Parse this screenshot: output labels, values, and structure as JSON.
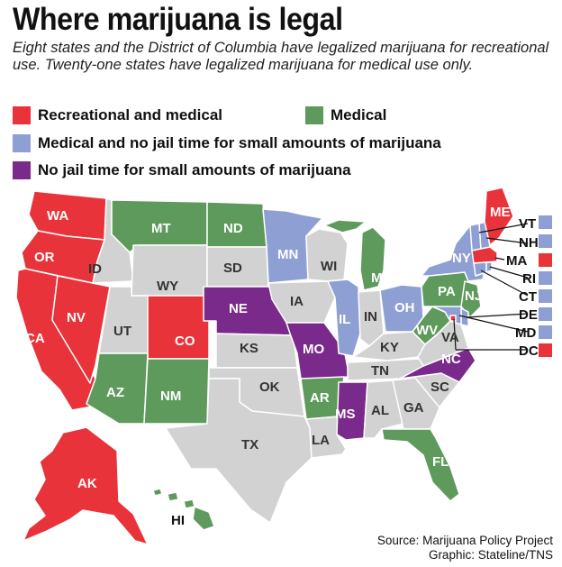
{
  "title": "Where marijuana is legal",
  "subtitle": "Eight states and the District of Columbia have legalized marijuana for recreational use. Twenty-one states have legalized marijuana for medical use only.",
  "colors": {
    "recreational_and_medical": "#e8333b",
    "medical": "#5e9a5b",
    "medical_no_jail": "#8e9fd4",
    "no_jail": "#7a2a8a",
    "none": "#d2d2d2",
    "border": "#ffffff"
  },
  "legend": {
    "recreational_and_medical": "Recreational and medical",
    "medical": "Medical",
    "medical_no_jail": "Medical and no jail time for small amounts of marijuana",
    "no_jail": "No jail time for small amounts of marijuana"
  },
  "states": {
    "WA": "WA",
    "OR": "OR",
    "CA": "CA",
    "NV": "NV",
    "ID": "ID",
    "MT": "MT",
    "WY": "WY",
    "UT": "UT",
    "AZ": "AZ",
    "CO": "CO",
    "NM": "NM",
    "ND": "ND",
    "SD": "SD",
    "NE": "NE",
    "KS": "KS",
    "OK": "OK",
    "TX": "TX",
    "MN": "MN",
    "IA": "IA",
    "MO": "MO",
    "AR": "AR",
    "LA": "LA",
    "WI": "WI",
    "IL": "IL",
    "MI": "MI",
    "IN": "IN",
    "OH": "OH",
    "KY": "KY",
    "TN": "TN",
    "MS": "MS",
    "AL": "AL",
    "GA": "GA",
    "FL": "FL",
    "SC": "SC",
    "NC": "NC",
    "VA": "VA",
    "WV": "WV",
    "PA": "PA",
    "NY": "NY",
    "NJ": "NJ",
    "ME": "ME",
    "AK": "AK",
    "HI": "HI"
  },
  "callouts": {
    "VT": "VT",
    "NH": "NH",
    "MA": "MA",
    "RI": "RI",
    "CT": "CT",
    "DE": "DE",
    "MD": "MD",
    "DC": "DC"
  },
  "source": {
    "line1": "Source: Marijuana Policy Project",
    "line2": "Graphic: Stateline/TNS"
  }
}
